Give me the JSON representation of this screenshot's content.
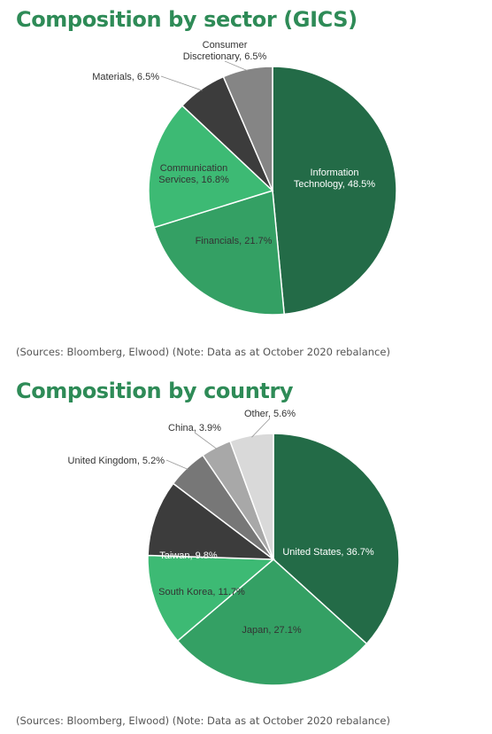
{
  "colors": {
    "title": "#2e8b57",
    "source": "#555555"
  },
  "chart_data": [
    {
      "type": "pie",
      "title": "Composition by sector (GICS)",
      "source": "(Sources: Bloomberg, Elwood) (Note: Data as at October 2020 rebalance)",
      "slices": [
        {
          "label": "Information Technology, 48.5%",
          "value": 48.5,
          "color": "#236b47"
        },
        {
          "label": "Financials, 21.7%",
          "value": 21.7,
          "color": "#34a064"
        },
        {
          "label": "Communication Services, 16.8%",
          "value": 16.8,
          "color": "#3dba74"
        },
        {
          "label": "Materials, 6.5%",
          "value": 6.5,
          "color": "#3c3c3c"
        },
        {
          "label": "Consumer Discretionary, 6.5%",
          "value": 6.5,
          "color": "#858585"
        }
      ]
    },
    {
      "type": "pie",
      "title": "Composition by country",
      "source": "(Sources: Bloomberg, Elwood) (Note: Data as at October 2020 rebalance)",
      "slices": [
        {
          "label": "United States, 36.7%",
          "value": 36.7,
          "color": "#236b47"
        },
        {
          "label": "Japan, 27.1%",
          "value": 27.1,
          "color": "#34a064"
        },
        {
          "label": "South Korea, 11.7%",
          "value": 11.7,
          "color": "#3dba74"
        },
        {
          "label": "Taiwan, 9.8%",
          "value": 9.8,
          "color": "#3c3c3c"
        },
        {
          "label": "United Kingdom, 5.2%",
          "value": 5.2,
          "color": "#777777"
        },
        {
          "label": "China, 3.9%",
          "value": 3.9,
          "color": "#a8a8a8"
        },
        {
          "label": "Other, 5.6%",
          "value": 5.6,
          "color": "#d9d9d9"
        }
      ]
    }
  ]
}
